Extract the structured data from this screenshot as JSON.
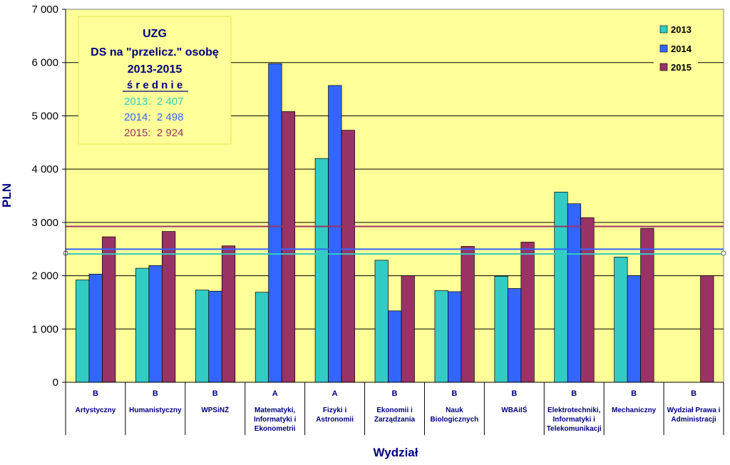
{
  "colors": {
    "series_2013": "#33CCC4",
    "series_2014": "#3366FF",
    "series_2015": "#993366",
    "plot_background": "#FFFF99",
    "info_box": "#FFFF99",
    "axis_text": "#000000",
    "category_text": "#000080"
  },
  "chart_data": {
    "type": "bar",
    "title": "",
    "xlabel": "Wydział",
    "ylabel": "PLN",
    "ylim": [
      0,
      7000
    ],
    "yticks": [
      0,
      1000,
      2000,
      3000,
      4000,
      5000,
      6000,
      7000
    ],
    "ytick_labels": [
      "0",
      "1 000",
      "2 000",
      "3 000",
      "4 000",
      "5 000",
      "6 000",
      "7 000"
    ],
    "grid": true,
    "legend_position": "top-right",
    "categories": [
      {
        "group": "B",
        "name_lines": [
          "Artystyczny"
        ]
      },
      {
        "group": "B",
        "name_lines": [
          "Humanistyczny"
        ]
      },
      {
        "group": "B",
        "name_lines": [
          "WPSiNŻ"
        ]
      },
      {
        "group": "A",
        "name_lines": [
          "Matematyki,",
          "Informatyki i",
          "Ekonometrii"
        ]
      },
      {
        "group": "A",
        "name_lines": [
          "Fizyki i",
          "Astronomii"
        ]
      },
      {
        "group": "B",
        "name_lines": [
          "Ekonomii i",
          "Zarządzania"
        ]
      },
      {
        "group": "B",
        "name_lines": [
          "Nauk",
          "Biologicznych"
        ]
      },
      {
        "group": "B",
        "name_lines": [
          "WBAiIŚ"
        ]
      },
      {
        "group": "B",
        "name_lines": [
          "Elektrotechniki,",
          "Informatyki i",
          "Telekomunikacji"
        ]
      },
      {
        "group": "B",
        "name_lines": [
          "Mechaniczny"
        ]
      },
      {
        "group": "B",
        "name_lines": [
          "Wydział Prawa i",
          "Administracji"
        ]
      }
    ],
    "series": [
      {
        "name": "2013",
        "values": [
          1920,
          2140,
          1730,
          1690,
          4200,
          2290,
          1720,
          1990,
          3570,
          2350,
          null
        ]
      },
      {
        "name": "2014",
        "values": [
          2030,
          2190,
          1710,
          5980,
          5570,
          1340,
          1700,
          1760,
          3350,
          2000,
          null
        ]
      },
      {
        "name": "2015",
        "values": [
          2730,
          2830,
          2560,
          5080,
          4730,
          2000,
          2550,
          2630,
          3090,
          2890,
          2000
        ]
      }
    ],
    "average_lines": [
      {
        "series": "2013",
        "value": 2407
      },
      {
        "series": "2014",
        "value": 2498
      },
      {
        "series": "2015",
        "value": 2924
      }
    ],
    "info_box": {
      "line1": "UZG",
      "line2": "DS na \"przelicz.\" osobę",
      "line3": "2013-2015",
      "heading": "ś r e d n i e",
      "averages": [
        "2013:  2 407",
        "2014:  2 498",
        "2015:  2 924"
      ]
    }
  }
}
